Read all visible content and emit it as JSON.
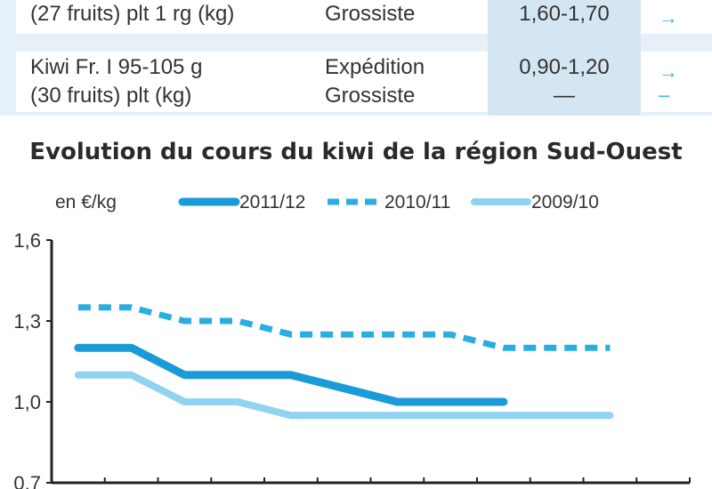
{
  "table": {
    "rows": [
      {
        "product_lines": [
          "(27 fruits) plt 1 rg (kg)"
        ],
        "stage_lines": [
          "Grossiste"
        ],
        "price_lines": [
          "1,60-1,70"
        ],
        "trend_lines": [
          "→"
        ]
      },
      {
        "product_lines": [
          "Kiwi Fr. I 95-105 g",
          "(30 fruits) plt (kg)"
        ],
        "stage_lines": [
          "Expédition",
          "Grossiste"
        ],
        "price_lines": [
          "0,90-1,20",
          "—"
        ],
        "trend_lines": [
          "→",
          "–"
        ]
      }
    ]
  },
  "chart_data": {
    "type": "line",
    "title": "Evolution du cours du kiwi de la région Sud-Ouest",
    "ylabel": "en €/kg",
    "ylim": [
      0.7,
      1.6
    ],
    "y_ticks": [
      0.7,
      1.0,
      1.3,
      1.6
    ],
    "y_tick_labels": [
      "0,7",
      "1,0",
      "1,3",
      "1,6"
    ],
    "x_tick_count": 12,
    "legend_position": "top",
    "grid": false,
    "series": [
      {
        "name": "2011/12",
        "style": "solid-thick",
        "color": "#1a9bd7",
        "values": [
          1.2,
          1.2,
          1.1,
          1.1,
          1.1,
          1.05,
          1.0,
          1.0,
          1.0
        ]
      },
      {
        "name": "2010/11",
        "style": "dashed",
        "color": "#2aaee0",
        "values": [
          1.35,
          1.35,
          1.3,
          1.3,
          1.25,
          1.25,
          1.25,
          1.25,
          1.2,
          1.2,
          1.2
        ]
      },
      {
        "name": "2009/10",
        "style": "solid",
        "color": "#8fd3f1",
        "values": [
          1.1,
          1.1,
          1.0,
          1.0,
          0.95,
          0.95,
          0.95,
          0.95,
          0.95,
          0.95,
          0.95
        ]
      }
    ]
  }
}
